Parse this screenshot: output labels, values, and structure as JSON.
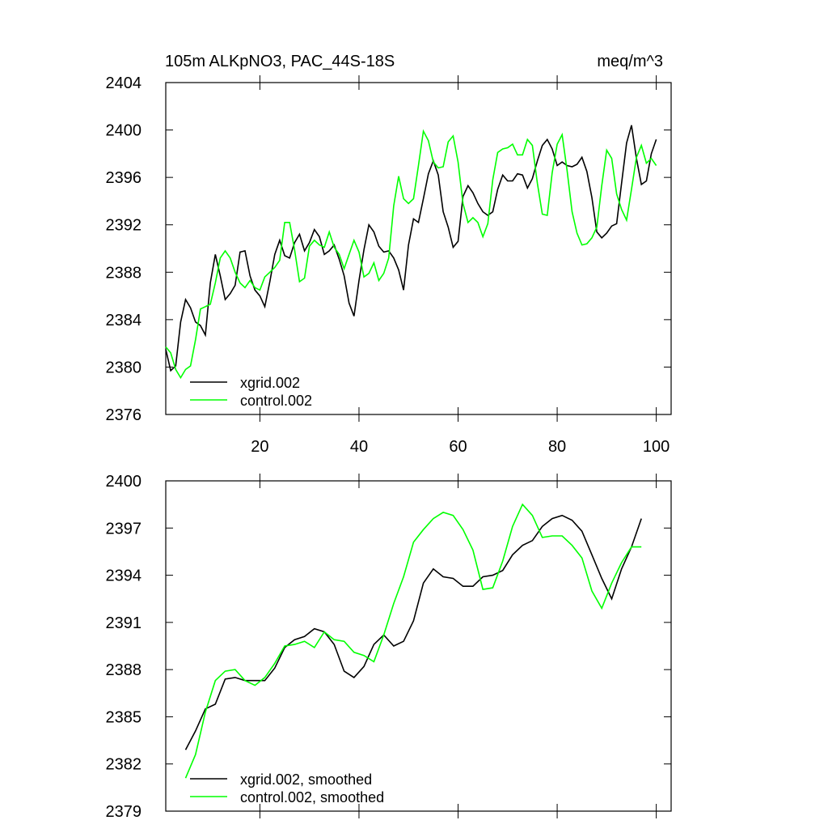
{
  "chart_data": [
    {
      "type": "line",
      "title": "105m ALKpNO3, PAC_44S-18S",
      "units": "meq/m^3",
      "x": [
        1,
        2,
        3,
        4,
        5,
        6,
        7,
        8,
        9,
        10,
        11,
        12,
        13,
        14,
        15,
        16,
        17,
        18,
        19,
        20,
        21,
        22,
        23,
        24,
        25,
        26,
        27,
        28,
        29,
        30,
        31,
        32,
        33,
        34,
        35,
        36,
        37,
        38,
        39,
        40,
        41,
        42,
        43,
        44,
        45,
        46,
        47,
        48,
        49,
        50,
        51,
        52,
        53,
        54,
        55,
        56,
        57,
        58,
        59,
        60,
        61,
        62,
        63,
        64,
        65,
        66,
        67,
        68,
        69,
        70,
        71,
        72,
        73,
        74,
        75,
        76,
        77,
        78,
        79,
        80,
        81,
        82,
        83,
        84,
        85,
        86,
        87,
        88,
        89,
        90,
        91,
        92,
        93,
        94,
        95,
        96,
        97,
        98,
        99,
        100
      ],
      "series": [
        {
          "name": "xgrid.002",
          "color": "#000000",
          "values": [
            2381.5,
            2379.7,
            2380.1,
            2383.8,
            2385.7,
            2385.0,
            2383.8,
            2383.5,
            2382.7,
            2387.1,
            2389.5,
            2387.7,
            2385.7,
            2386.2,
            2386.9,
            2389.7,
            2389.8,
            2387.7,
            2386.5,
            2386.0,
            2385.1,
            2387.2,
            2389.5,
            2390.7,
            2389.4,
            2389.2,
            2390.5,
            2391.2,
            2389.8,
            2390.5,
            2391.6,
            2391.0,
            2389.5,
            2389.8,
            2390.3,
            2389.1,
            2387.7,
            2385.4,
            2384.3,
            2387.3,
            2389.9,
            2392.0,
            2391.4,
            2390.2,
            2389.7,
            2389.8,
            2389.2,
            2388.2,
            2386.5,
            2390.3,
            2392.5,
            2392.2,
            2394.2,
            2396.3,
            2397.4,
            2396.2,
            2393.1,
            2391.8,
            2390.1,
            2390.6,
            2394.4,
            2395.3,
            2394.7,
            2393.8,
            2393.1,
            2392.8,
            2393.1,
            2395.0,
            2396.2,
            2395.7,
            2395.7,
            2396.3,
            2396.2,
            2395.1,
            2395.9,
            2397.4,
            2398.7,
            2399.2,
            2398.4,
            2397.0,
            2397.3,
            2397.0,
            2396.9,
            2397.1,
            2397.7,
            2396.5,
            2394.3,
            2391.4,
            2390.9,
            2391.3,
            2391.9,
            2392.1,
            2395.5,
            2398.9,
            2400.4,
            2397.6,
            2395.4,
            2395.7,
            2398.0,
            2399.2
          ]
        },
        {
          "name": "control.002",
          "color": "#00ff00",
          "values": [
            2381.7,
            2381.2,
            2379.8,
            2379.1,
            2379.8,
            2380.1,
            2382.3,
            2384.9,
            2385.1,
            2385.3,
            2387.1,
            2389.2,
            2389.8,
            2389.2,
            2388.0,
            2387.1,
            2386.7,
            2387.3,
            2386.7,
            2386.5,
            2387.6,
            2388.0,
            2388.4,
            2389.0,
            2392.2,
            2392.2,
            2389.9,
            2387.2,
            2387.5,
            2390.2,
            2390.7,
            2390.3,
            2390.1,
            2391.4,
            2390.1,
            2389.5,
            2388.3,
            2389.5,
            2390.7,
            2389.7,
            2387.6,
            2387.9,
            2388.8,
            2387.3,
            2387.9,
            2389.2,
            2393.6,
            2396.1,
            2394.2,
            2393.8,
            2394.2,
            2397.0,
            2399.9,
            2399.1,
            2397.3,
            2396.8,
            2396.9,
            2399.0,
            2399.5,
            2397.3,
            2393.8,
            2392.2,
            2392.6,
            2392.2,
            2391.0,
            2392.1,
            2395.8,
            2398.1,
            2398.4,
            2398.5,
            2398.8,
            2397.9,
            2397.9,
            2399.2,
            2398.7,
            2395.5,
            2392.9,
            2392.8,
            2396.4,
            2398.8,
            2399.6,
            2396.6,
            2393.1,
            2391.3,
            2390.3,
            2390.4,
            2390.9,
            2391.8,
            2395.3,
            2398.3,
            2397.6,
            2394.6,
            2393.3,
            2392.4,
            2395.0,
            2397.7,
            2398.7,
            2397.2,
            2397.6,
            2397.0
          ]
        }
      ],
      "xlim": [
        1,
        103
      ],
      "xticks": [
        20,
        40,
        60,
        80,
        100
      ],
      "ylim": [
        2376,
        2404
      ],
      "yticks": [
        2376,
        2380,
        2384,
        2388,
        2392,
        2396,
        2400,
        2404
      ],
      "legend": "lower left"
    },
    {
      "type": "line",
      "x": [
        5,
        7,
        9,
        11,
        13,
        15,
        17,
        19,
        21,
        23,
        25,
        27,
        29,
        31,
        33,
        35,
        37,
        39,
        41,
        43,
        45,
        47,
        49,
        51,
        53,
        55,
        57,
        59,
        61,
        63,
        65,
        67,
        69,
        71,
        73,
        75,
        77,
        79,
        81,
        83,
        85,
        87,
        89,
        91,
        93,
        95,
        97
      ],
      "series": [
        {
          "name": "xgrid.002, smoothed",
          "color": "#000000",
          "values": [
            2382.9,
            2384.1,
            2385.5,
            2385.8,
            2387.4,
            2387.5,
            2387.3,
            2387.3,
            2387.3,
            2388.1,
            2389.4,
            2389.9,
            2390.1,
            2390.6,
            2390.4,
            2389.6,
            2387.9,
            2387.5,
            2388.2,
            2389.6,
            2390.2,
            2389.5,
            2389.8,
            2391.1,
            2393.5,
            2394.4,
            2393.9,
            2393.8,
            2393.3,
            2393.3,
            2393.9,
            2394.0,
            2394.3,
            2395.3,
            2395.9,
            2396.2,
            2397.1,
            2397.6,
            2397.8,
            2397.5,
            2396.8,
            2395.3,
            2393.8,
            2392.5,
            2394.4,
            2395.8,
            2397.6
          ]
        },
        {
          "name": "control.002, smoothed",
          "color": "#00ff00",
          "values": [
            2381.1,
            2382.6,
            2385.3,
            2387.3,
            2387.9,
            2388.0,
            2387.3,
            2387.0,
            2387.5,
            2388.4,
            2389.5,
            2389.6,
            2389.8,
            2389.4,
            2390.4,
            2389.9,
            2389.8,
            2389.1,
            2388.9,
            2388.5,
            2390.2,
            2392.2,
            2393.9,
            2396.1,
            2396.9,
            2397.6,
            2398.0,
            2397.8,
            2396.9,
            2395.6,
            2393.1,
            2393.2,
            2394.9,
            2397.1,
            2398.5,
            2397.8,
            2396.4,
            2396.5,
            2396.5,
            2395.9,
            2395.1,
            2393.0,
            2391.9,
            2393.5,
            2394.8,
            2395.8,
            2395.8
          ]
        }
      ],
      "xlim": [
        1,
        103
      ],
      "xticks": [
        20,
        40,
        60,
        80,
        100
      ],
      "xtick_labels": false,
      "ylim": [
        2379,
        2400
      ],
      "yticks": [
        2379,
        2382,
        2385,
        2388,
        2391,
        2394,
        2397,
        2400
      ],
      "legend": "lower left"
    }
  ]
}
